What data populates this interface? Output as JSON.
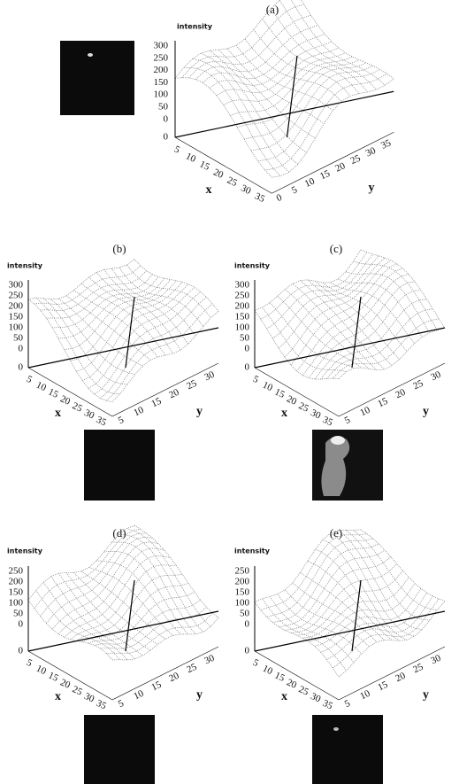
{
  "panels": [
    {
      "label": "(a)",
      "z_label": "intensity",
      "z_ticks": [
        300,
        250,
        200,
        150,
        100,
        50,
        0
      ],
      "z_base": 0,
      "x_label": "x",
      "x_ticks": [
        5,
        10,
        15,
        20,
        25,
        30,
        35
      ],
      "y_label": "y",
      "y_ticks": [
        0,
        5,
        10,
        15,
        20,
        25,
        30,
        35
      ]
    },
    {
      "label": "(b)",
      "z_label": "intensity",
      "z_ticks": [
        300,
        250,
        200,
        150,
        100,
        50,
        0
      ],
      "z_base": 0,
      "x_label": "x",
      "x_ticks": [
        5,
        10,
        15,
        20,
        25,
        30,
        35
      ],
      "y_label": "y",
      "y_ticks": [
        5,
        10,
        15,
        20,
        25,
        30
      ]
    },
    {
      "label": "(c)",
      "z_label": "intensity",
      "z_ticks": [
        300,
        250,
        200,
        150,
        100,
        50,
        0
      ],
      "z_base": 0,
      "x_label": "x",
      "x_ticks": [
        5,
        10,
        15,
        20,
        25,
        30,
        35
      ],
      "y_label": "y",
      "y_ticks": [
        5,
        10,
        15,
        20,
        25,
        30
      ]
    },
    {
      "label": "(d)",
      "z_label": "intensity",
      "z_ticks": [
        250,
        200,
        150,
        100,
        50,
        0
      ],
      "z_base": 0,
      "x_label": "x",
      "x_ticks": [
        5,
        10,
        15,
        20,
        25,
        30,
        35
      ],
      "y_label": "y",
      "y_ticks": [
        5,
        10,
        15,
        20,
        25,
        30
      ]
    },
    {
      "label": "(e)",
      "z_label": "intensity",
      "z_ticks": [
        250,
        200,
        150,
        100,
        50,
        0
      ],
      "z_base": 0,
      "x_label": "x",
      "x_ticks": [
        5,
        10,
        15,
        20,
        25,
        30,
        35
      ],
      "y_label": "y",
      "y_ticks": [
        5,
        10,
        15,
        20,
        25,
        30
      ]
    }
  ]
}
